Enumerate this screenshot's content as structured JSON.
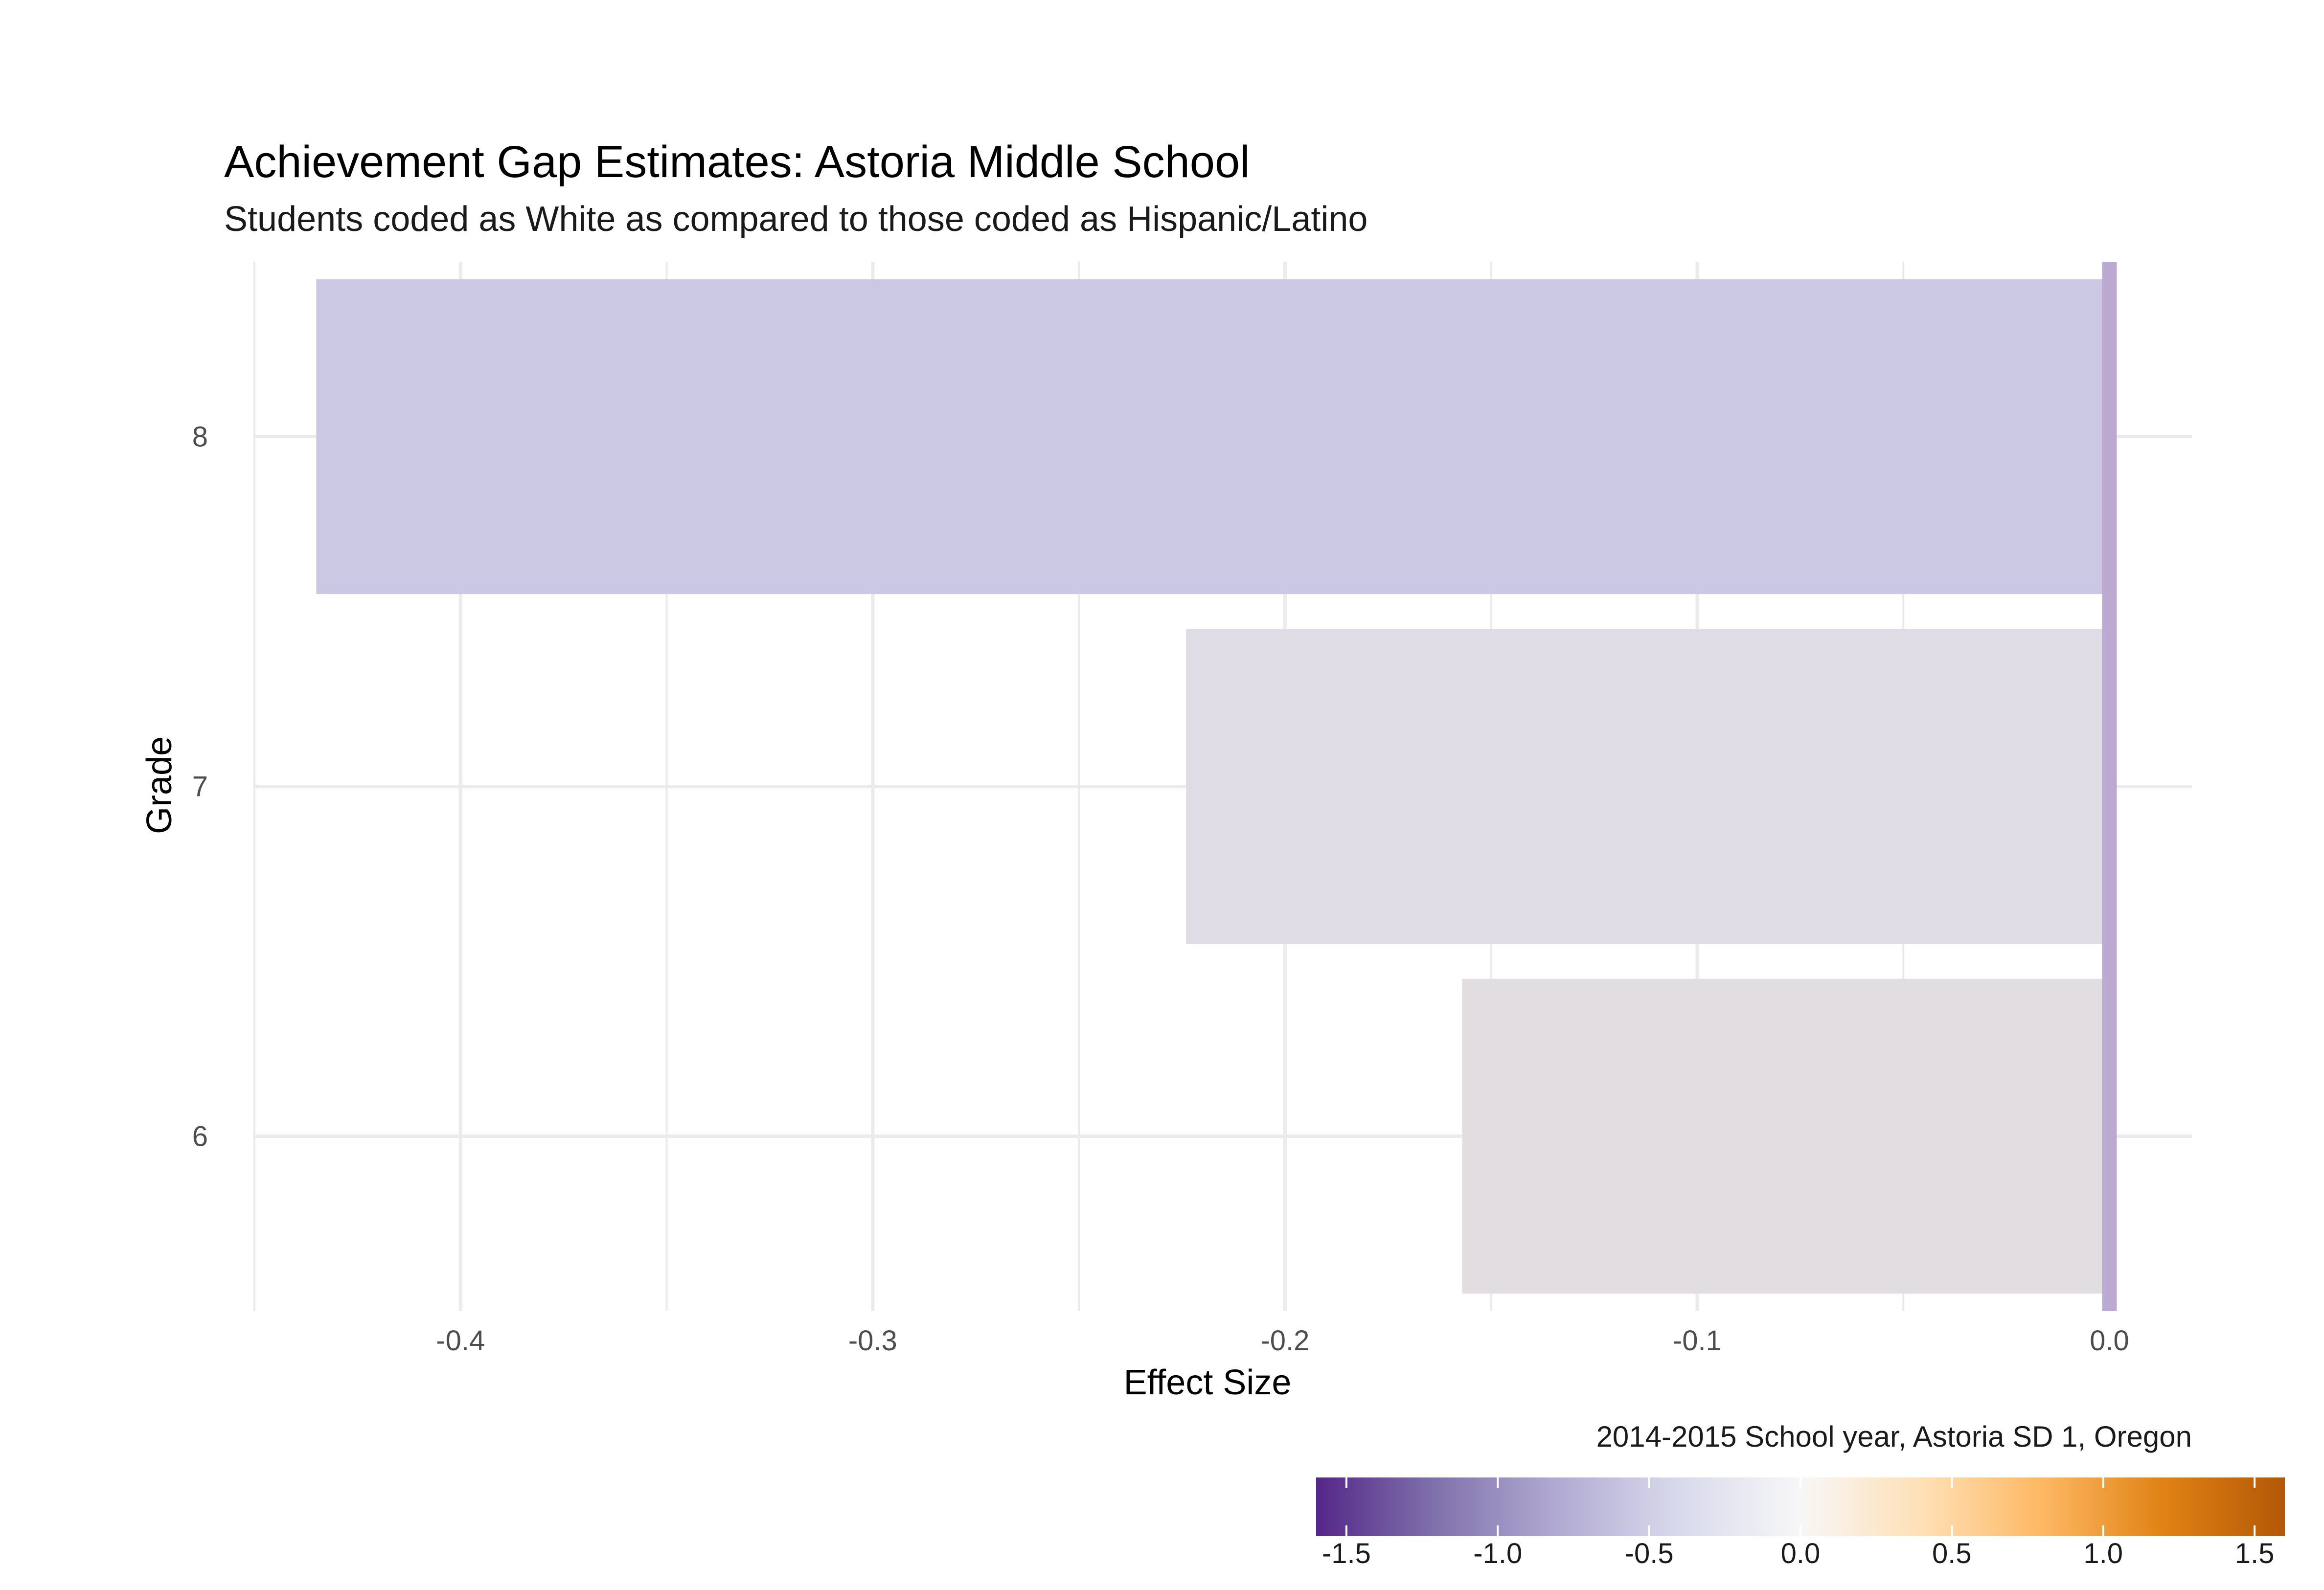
{
  "chart_data": {
    "type": "bar",
    "orientation": "horizontal",
    "title": "Achievement Gap Estimates: Astoria Middle School",
    "subtitle": "Students coded as White as compared to those coded as Hispanic/Latino",
    "xlabel": "Effect Size",
    "ylabel": "Grade",
    "caption": "2014-2015 School year, Astoria SD 1, Oregon",
    "categories": [
      "6",
      "7",
      "8"
    ],
    "values": [
      -0.157,
      -0.224,
      -0.435
    ],
    "bar_colors": [
      "#e2dde0",
      "#dfdce6",
      "#cbc8e4"
    ],
    "xlim": [
      -0.45,
      0.02
    ],
    "x_ticks": [
      "-0.4",
      "-0.3",
      "-0.2",
      "-0.1",
      "0.0"
    ],
    "x_tick_values": [
      -0.4,
      -0.3,
      -0.2,
      -0.1,
      0.0
    ],
    "reference_line": {
      "x": 0.0,
      "color": "#bca9d2"
    },
    "grid": true,
    "legend": {
      "type": "colorbar",
      "placement": "bottom-right",
      "range": [
        -1.6,
        1.6
      ],
      "ticks": [
        "-1.5",
        "-1.0",
        "-0.5",
        "0.0",
        "0.5",
        "1.0",
        "1.5"
      ],
      "tick_values": [
        -1.5,
        -1.0,
        -0.5,
        0.0,
        0.5,
        1.0,
        1.5
      ],
      "colors": [
        "#542788",
        "#8073ac",
        "#b2abd2",
        "#d8daeb",
        "#f7f7f7",
        "#fee0b6",
        "#fdb863",
        "#e08214",
        "#b35806"
      ]
    }
  }
}
